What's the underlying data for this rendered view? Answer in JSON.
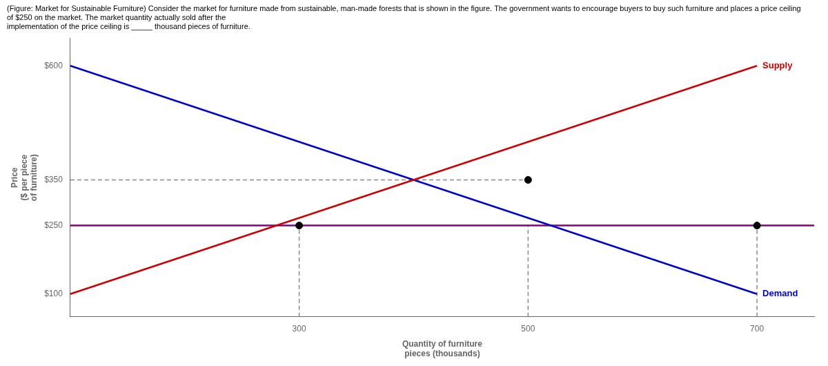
{
  "chart_data": {
    "type": "line",
    "title": [
      "(Figure: Market for Sustainable Furniture) Consider the market for furniture made from sustainable, man-made forests that is shown in the figure. The government wants to encourage buyers to buy such furniture and places a price ceiling of $250 on the market. The market quantity actually sold after the",
      "implementation of the price ceiling is _____ thousand pieces of furniture."
    ],
    "xlabel": "Quantity of furniture\npieces (thousands)",
    "ylabel": "Price\n($ per piece\nof furniture)",
    "series": [
      {
        "name": "Supply",
        "color": "#cc0000",
        "x": [
          100,
          700
        ],
        "values": [
          100,
          600
        ]
      },
      {
        "name": "Demand",
        "color": "#0000cc",
        "x": [
          100,
          700
        ],
        "values": [
          600,
          100
        ]
      },
      {
        "color": "#800080",
        "x": [
          100,
          750
        ],
        "values": [
          250,
          250
        ]
      },
      {
        "color": "#888888",
        "line_style": "dashed",
        "x": [
          300,
          300
        ],
        "values": [
          50,
          250
        ]
      },
      {
        "color": "#888888",
        "line_style": "dashed",
        "x": [
          500,
          500
        ],
        "values": [
          50,
          250
        ]
      },
      {
        "color": "#888888",
        "line_style": "dashed",
        "x": [
          700,
          700
        ],
        "values": [
          50,
          250
        ]
      },
      {
        "color": "#888888",
        "line_style": "dashed",
        "x": [
          100,
          500
        ],
        "values": [
          350,
          350
        ]
      },
      {
        "type": "scatter",
        "marker": "circle",
        "color": "#000000",
        "x": [
          500,
          300,
          700
        ],
        "values": [
          350,
          250,
          250
        ]
      }
    ],
    "xlim": [
      100,
      750
    ],
    "xticks": [
      300,
      500,
      700
    ],
    "ylim": [
      50,
      660
    ],
    "yticks": [
      {
        "value": 100,
        "label": "$100"
      },
      {
        "value": 250,
        "label": "$250"
      },
      {
        "value": 350,
        "label": "$350"
      },
      {
        "value": 600,
        "label": "$600"
      }
    ],
    "grid": false,
    "legend": false
  }
}
